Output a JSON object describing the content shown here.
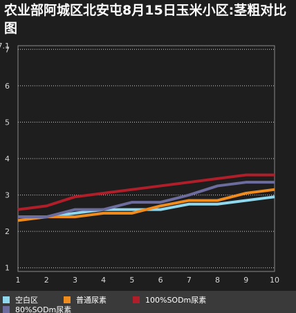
{
  "title": "农业部阿城区北安屯8月15日玉米小区:茎粗对比图",
  "chart_data": {
    "type": "line",
    "x": [
      1,
      2,
      3,
      4,
      5,
      6,
      7,
      8,
      9,
      10
    ],
    "x_tick_labels": [
      "1",
      "2",
      "3",
      "4",
      "5",
      "6",
      "7",
      "8",
      "9",
      "10"
    ],
    "y_tick_labels": [
      "1",
      "2",
      "3",
      "4",
      "5",
      "6",
      "7",
      "7.1"
    ],
    "y_ticks": [
      1,
      2,
      3,
      4,
      5,
      6,
      7,
      7.1
    ],
    "ylim": [
      0.9,
      7.1
    ],
    "xlim": [
      1,
      10
    ],
    "grid": true,
    "legend_position": "bottom",
    "series": [
      {
        "name": "空白区",
        "color": "#8fd8ee",
        "values": [
          2.4,
          2.4,
          2.5,
          2.6,
          2.6,
          2.6,
          2.75,
          2.75,
          2.85,
          2.95
        ]
      },
      {
        "name": "普通尿素",
        "color": "#f08c1e",
        "values": [
          2.3,
          2.4,
          2.4,
          2.5,
          2.5,
          2.7,
          2.85,
          2.85,
          3.05,
          3.15
        ]
      },
      {
        "name": "100%SODm尿素",
        "color": "#b01e2a",
        "values": [
          2.6,
          2.7,
          2.95,
          3.05,
          3.15,
          3.25,
          3.35,
          3.45,
          3.55,
          3.55
        ]
      },
      {
        "name": "80%SODm尿素",
        "color": "#6c6c9e",
        "values": [
          2.4,
          2.4,
          2.6,
          2.6,
          2.8,
          2.8,
          3.0,
          3.25,
          3.35,
          3.35
        ]
      }
    ]
  }
}
